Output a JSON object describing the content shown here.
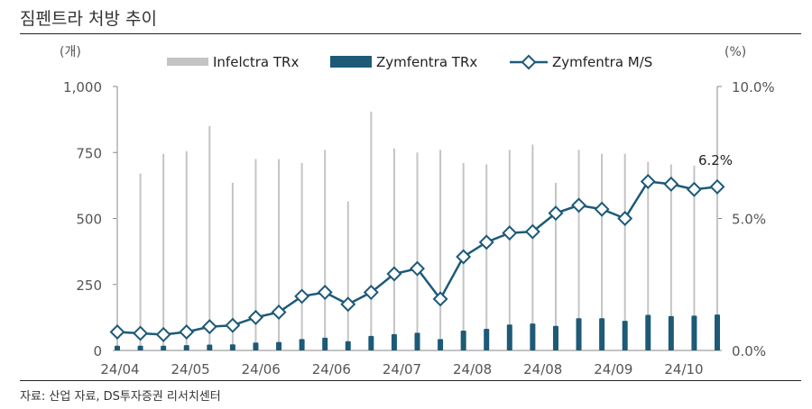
{
  "title": "짐펜트라 처방 추이",
  "source": "자료: 산업 자료, DS투자증권 리서치센터",
  "colors": {
    "infelctra": "#c4c4c4",
    "zymfentra": "#1d5a78",
    "share_line": "#1d5a78",
    "axis_text": "#555555"
  },
  "chart_data": {
    "type": "bar+line",
    "title": "짐펜트라 처방 추이",
    "y_left": {
      "unit_label": "(개)",
      "lim": [
        0,
        1000
      ],
      "ticks": [
        0,
        250,
        500,
        750,
        1000
      ],
      "tick_labels": [
        "0",
        "250",
        "500",
        "750",
        "1,000"
      ]
    },
    "y_right": {
      "unit_label": "(%)",
      "lim": [
        0,
        10
      ],
      "ticks": [
        0,
        5,
        10
      ],
      "tick_labels": [
        "0.0%",
        "5.0%",
        "10.0%"
      ]
    },
    "x_labels": [
      "24/04",
      "24/05",
      "24/06",
      "24/06",
      "24/07",
      "24/08",
      "24/08",
      "24/09",
      "24/10"
    ],
    "legend": [
      "Infelctra TRx",
      "Zymfentra TRx",
      "Zymfentra M/S"
    ],
    "series": [
      {
        "name": "Infelctra TRx",
        "kind": "bar",
        "values": [
          690,
          670,
          745,
          755,
          850,
          635,
          725,
          725,
          710,
          760,
          565,
          905,
          765,
          750,
          760,
          710,
          705,
          760,
          780,
          635,
          760,
          745,
          745,
          715,
          705,
          700,
          720
        ]
      },
      {
        "name": "Zymfentra TRx",
        "kind": "bar",
        "values": [
          18,
          18,
          18,
          20,
          22,
          23,
          30,
          32,
          43,
          48,
          35,
          55,
          62,
          67,
          43,
          75,
          82,
          98,
          102,
          93,
          122,
          122,
          112,
          135,
          130,
          132,
          136
        ]
      },
      {
        "name": "Zymfentra M/S",
        "kind": "line",
        "unit": "%",
        "values": [
          0.7,
          0.65,
          0.6,
          0.7,
          0.9,
          0.95,
          1.25,
          1.45,
          2.05,
          2.2,
          1.75,
          2.2,
          2.9,
          3.1,
          1.95,
          3.55,
          4.1,
          4.45,
          4.5,
          5.2,
          5.5,
          5.35,
          5.0,
          6.4,
          6.3,
          6.1,
          6.2
        ]
      }
    ],
    "annotations": [
      {
        "label": "6.2%"
      }
    ]
  }
}
